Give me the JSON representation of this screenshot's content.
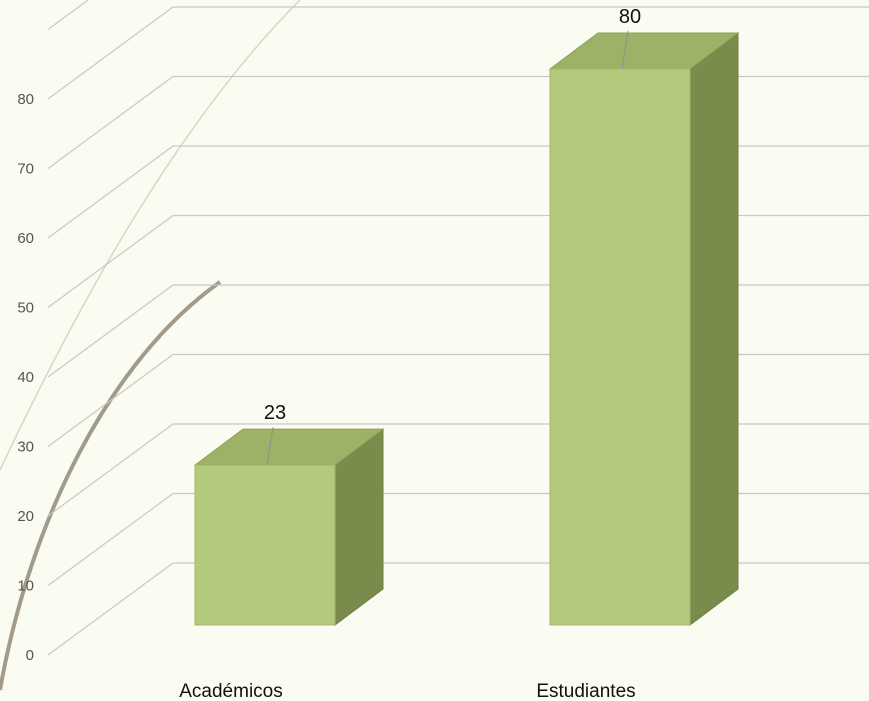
{
  "chart_data": {
    "type": "bar",
    "style": "3d-column",
    "categories": [
      "Académicos",
      "Estudiantes"
    ],
    "values": [
      23,
      80
    ],
    "ylim": [
      0,
      90
    ],
    "yticks": [
      0,
      10,
      20,
      30,
      40,
      50,
      60,
      70,
      80
    ],
    "ytick_labels": [
      "0",
      "10",
      "20",
      "30",
      "40",
      "50",
      "60",
      "70",
      "80"
    ],
    "data_labels": [
      "23",
      "80"
    ],
    "title": "",
    "xlabel": "",
    "ylabel": "",
    "grid": true,
    "legend": "none",
    "colors": {
      "bar_front": "#b3c97c",
      "bar_top": "#9db267",
      "bar_side": "#7a8c4b",
      "gridline": "#c8c8c8",
      "background": "#fafcf2",
      "decor_arc": "#a39b8a"
    }
  }
}
